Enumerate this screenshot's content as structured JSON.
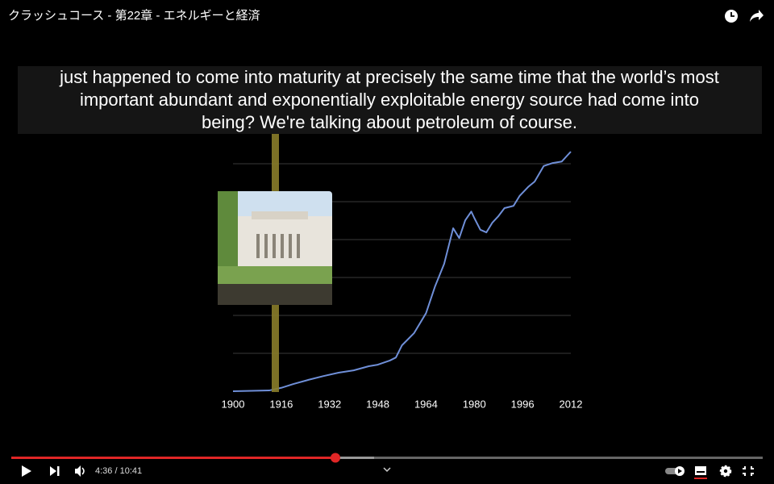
{
  "video": {
    "title": "クラッシュコース - 第22章 - エネルギーと経済",
    "captions": [
      "just happened to come into maturity at precisely the same time that the world’s most",
      "important abundant and exponentially exploitable energy source had come into",
      "being? We're talking about petroleum of course."
    ],
    "time": "4:36 / 10:41"
  },
  "chart_data": {
    "type": "line",
    "x": [
      1900,
      1912,
      1916,
      1920,
      1925,
      1930,
      1935,
      1940,
      1945,
      1948,
      1952,
      1954,
      1956,
      1960,
      1964,
      1967,
      1970,
      1973,
      1975,
      1977,
      1979,
      1980,
      1982,
      1984,
      1986,
      1988,
      1990,
      1993,
      1995,
      1998,
      2000,
      2003,
      2006,
      2009,
      2012
    ],
    "values": [
      0,
      0.02,
      0.09,
      0.19,
      0.3,
      0.4,
      0.49,
      0.55,
      0.66,
      0.7,
      0.81,
      0.89,
      1.21,
      1.53,
      2.06,
      2.77,
      3.36,
      4.3,
      4.04,
      4.51,
      4.74,
      4.57,
      4.26,
      4.19,
      4.45,
      4.62,
      4.83,
      4.89,
      5.15,
      5.4,
      5.53,
      5.94,
      6.02,
      6.06,
      6.32
    ],
    "color": "#6f8fd8",
    "xlim": [
      1900,
      2012
    ],
    "xticks": [
      1900,
      1916,
      1932,
      1948,
      1964,
      1980,
      1996,
      2012
    ],
    "ylim": [
      0,
      6.32
    ],
    "grid_lines": [
      1,
      2,
      3,
      4,
      5,
      6
    ]
  }
}
